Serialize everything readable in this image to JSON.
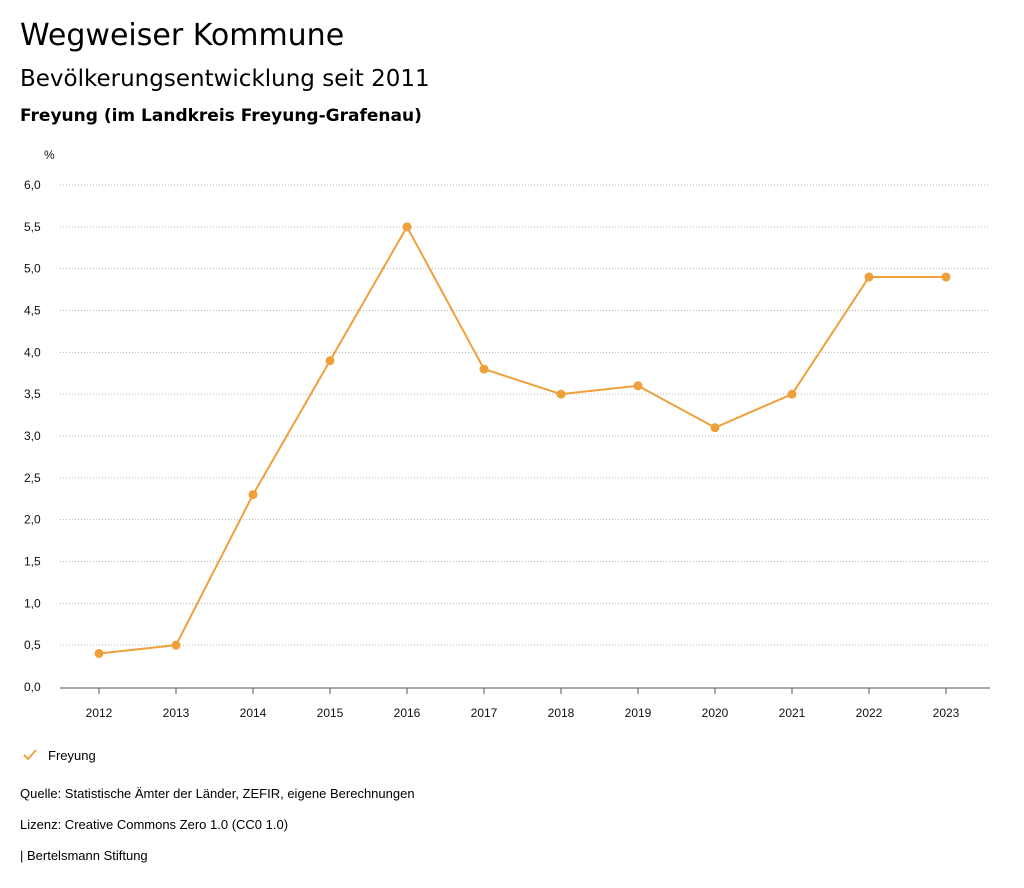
{
  "header": {
    "title": "Wegweiser Kommune",
    "subtitle": "Bevölkerungsentwicklung seit 2011",
    "region": "Freyung (im Landkreis Freyung-Grafenau)"
  },
  "chart_data": {
    "type": "line",
    "ylabel": "%",
    "ylim": [
      0,
      6
    ],
    "yticks": [
      "0,0",
      "0,5",
      "1,0",
      "1,5",
      "2,0",
      "2,5",
      "3,0",
      "3,5",
      "4,0",
      "4,5",
      "5,0",
      "5,5",
      "6,0"
    ],
    "grid": true,
    "legend_position": "bottom-left",
    "x": [
      "2012",
      "2013",
      "2014",
      "2015",
      "2016",
      "2017",
      "2018",
      "2019",
      "2020",
      "2021",
      "2022",
      "2023"
    ],
    "series": [
      {
        "name": "Freyung",
        "color": "#f0a03a",
        "values": [
          0.4,
          0.5,
          2.3,
          3.9,
          5.5,
          3.8,
          3.5,
          3.6,
          3.1,
          3.5,
          4.9,
          4.9
        ]
      }
    ]
  },
  "legend": {
    "label": "Freyung",
    "icon": "check-icon"
  },
  "footer": {
    "source": "Quelle: Statistische Ämter der Länder, ZEFIR, eigene Berechnungen",
    "license": "Lizenz: Creative Commons Zero 1.0 (CC0 1.0)",
    "publisher": "| Bertelsmann Stiftung"
  }
}
